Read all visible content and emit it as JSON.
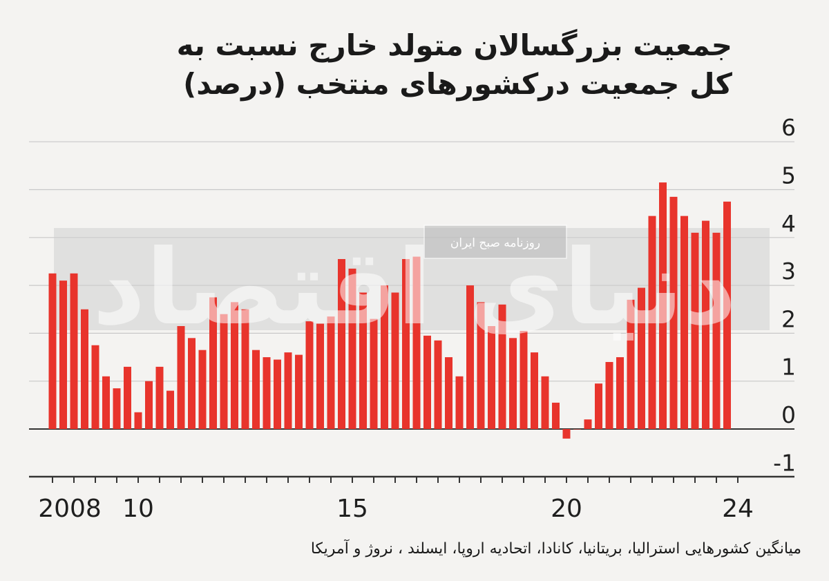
{
  "title": {
    "line1": "جمعیت بزرگسالان متولد خارج نسبت به",
    "line2": "کل جمعیت درکشورهای منتخب (درصد)"
  },
  "footnote": "میانگین کشورهایی استرالیا، بریتانیا، کانادا، اتحادیه اروپا، ایسلند ، نروژ و آمریکا",
  "watermark": {
    "logo_text": "دنیای اقتصاد",
    "source_label": "روزنامه صبح ایران"
  },
  "colors": {
    "bar": "#e8342c",
    "grid": "#c8c8c8",
    "zero_line": "#333333",
    "background": "#f4f3f1"
  },
  "chart_data": {
    "type": "bar",
    "title": "جمعیت بزرگسالان متولد خارج نسبت به کل جمعیت درکشورهای منتخب (درصد)",
    "x_tick_labels": [
      {
        "quarter": 0,
        "label": "2008"
      },
      {
        "quarter": 8,
        "label": "10"
      },
      {
        "quarter": 28,
        "label": "15"
      },
      {
        "quarter": 48,
        "label": "20"
      },
      {
        "quarter": 64,
        "label": "24"
      }
    ],
    "x_range_quarters": [
      0,
      65
    ],
    "y_ticks": [
      6,
      5,
      4,
      3,
      2,
      1,
      0,
      -1
    ],
    "ylim": [
      -1,
      6
    ],
    "grid": true,
    "frequency": "quarterly",
    "series": [
      {
        "values": [
          3.25,
          3.1,
          3.25,
          2.5,
          1.75,
          1.1,
          0.85,
          1.3,
          0.35,
          1.0,
          1.3,
          0.8,
          2.15,
          1.9,
          1.65,
          2.75,
          2.4,
          2.65,
          2.5,
          1.65,
          1.5,
          1.45,
          1.6,
          1.55,
          2.25,
          2.2,
          2.35,
          3.55,
          3.35,
          2.85,
          2.3,
          3.0,
          2.85,
          3.55,
          3.6,
          1.95,
          1.85,
          1.5,
          1.1,
          3.0,
          2.65,
          2.15,
          2.6,
          1.9,
          2.05,
          1.6,
          1.1,
          0.55,
          -0.2,
          0.0,
          0.2,
          0.95,
          1.4,
          1.5,
          2.7,
          2.95,
          4.45,
          5.15,
          4.85,
          4.45,
          4.1,
          4.35,
          4.1,
          4.75
        ]
      }
    ]
  }
}
